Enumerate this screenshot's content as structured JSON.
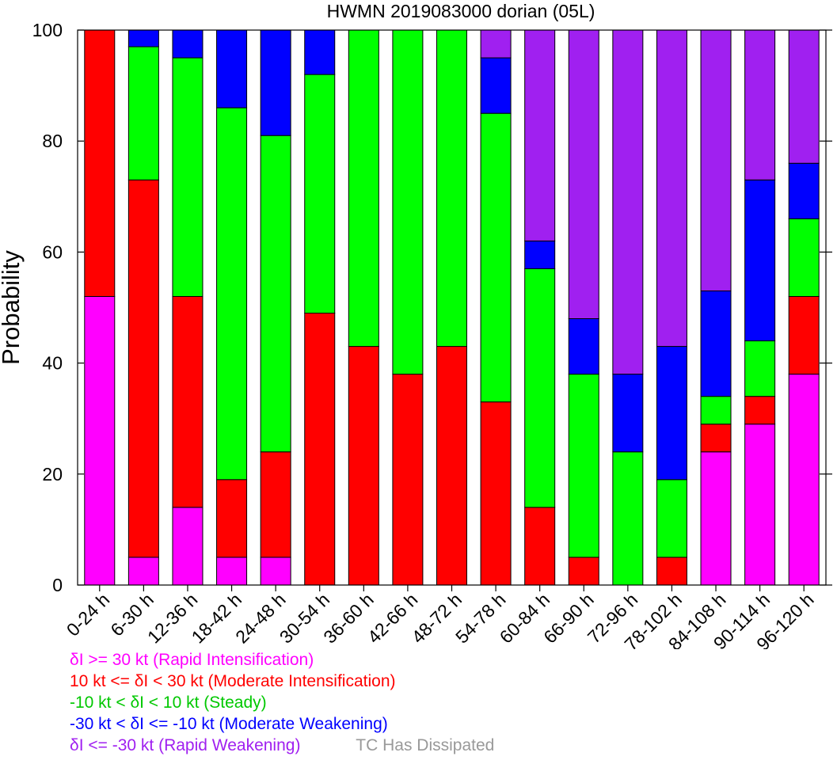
{
  "chart_data": {
    "type": "bar",
    "stacked": true,
    "title": "HWMN 2019083000 dorian (05L)",
    "ylabel": "Probability",
    "xlabel": "",
    "ylim": [
      0,
      100
    ],
    "yticks": [
      0,
      20,
      40,
      60,
      80,
      100
    ],
    "grid": false,
    "categories": [
      "0-24 h",
      "6-30 h",
      "12-36 h",
      "18-42 h",
      "24-48 h",
      "30-54 h",
      "36-60 h",
      "42-66 h",
      "48-72 h",
      "54-78 h",
      "60-84 h",
      "66-90 h",
      "72-96 h",
      "78-102 h",
      "84-108 h",
      "90-114 h",
      "96-120 h"
    ],
    "series": [
      {
        "name": "δI >= 30 kt (Rapid Intensification)",
        "color": "#ff00ff",
        "values": [
          52,
          5,
          14,
          5,
          5,
          0,
          0,
          0,
          0,
          0,
          0,
          0,
          0,
          0,
          24,
          29,
          38
        ]
      },
      {
        "name": "10 kt <= δI < 30 kt (Moderate Intensification)",
        "color": "#ff0000",
        "values": [
          48,
          68,
          38,
          14,
          19,
          49,
          43,
          38,
          43,
          33,
          14,
          5,
          0,
          5,
          5,
          5,
          14
        ]
      },
      {
        "name": "-10 kt < δI < 10 kt (Steady)",
        "color": "#00ff00",
        "values": [
          0,
          24,
          43,
          67,
          57,
          43,
          57,
          62,
          57,
          52,
          43,
          33,
          24,
          14,
          5,
          10,
          14
        ]
      },
      {
        "name": "-30 kt < δI <= -10 kt (Moderate Weakening)",
        "color": "#0000ff",
        "values": [
          0,
          3,
          5,
          14,
          19,
          8,
          0,
          0,
          0,
          10,
          5,
          10,
          14,
          24,
          19,
          29,
          10
        ]
      },
      {
        "name": "δI <= -30 kt (Rapid Weakening)",
        "color": "#a020f0",
        "values": [
          0,
          0,
          0,
          0,
          0,
          0,
          0,
          0,
          0,
          5,
          38,
          52,
          62,
          57,
          47,
          27,
          24
        ]
      }
    ],
    "legend_placement": "bottom",
    "legend": {
      "items": [
        {
          "text": "δI >= 30 kt (Rapid Intensification)",
          "color": "#ff00ff"
        },
        {
          "text": "10 kt <= δI < 30 kt (Moderate Intensification)",
          "color": "#ff0000"
        },
        {
          "text": "-10 kt < δI < 10 kt (Steady)",
          "color": "#00c800"
        },
        {
          "text": "-30 kt < δI <= -10 kt (Moderate Weakening)",
          "color": "#0000ff"
        },
        {
          "text": "δI <= -30 kt (Rapid Weakening)",
          "color": "#a020f0"
        }
      ],
      "dissipated": {
        "text": "TC Has Dissipated",
        "color": "#999999"
      }
    }
  }
}
